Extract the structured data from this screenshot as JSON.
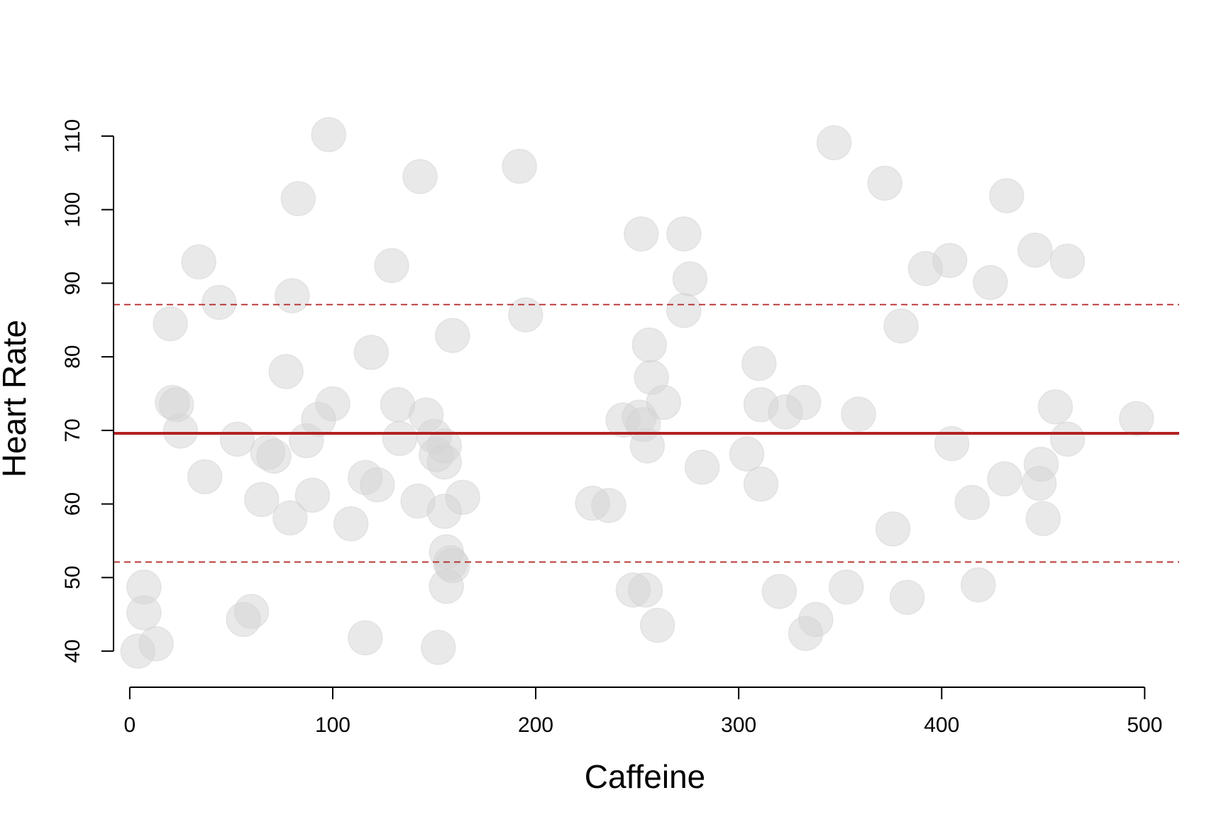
{
  "chart_data": {
    "type": "scatter",
    "title": "",
    "xlabel": "Caffeine",
    "ylabel": "Heart Rate",
    "xlim": [
      -8,
      517
    ],
    "ylim": [
      37.5,
      112.5
    ],
    "xticks": [
      0,
      100,
      200,
      300,
      400,
      500
    ],
    "yticks": [
      40,
      50,
      60,
      70,
      80,
      90,
      100,
      110
    ],
    "grid": false,
    "legend": "none",
    "colors": {
      "point_fill": "#d3d3d3",
      "mean_line": "#b22222",
      "band_line": "#b22222"
    },
    "reference_lines": [
      {
        "name": "mean",
        "y": 69.6,
        "style": "solid"
      },
      {
        "name": "upper",
        "y": 87.1,
        "style": "dashed"
      },
      {
        "name": "lower",
        "y": 52.1,
        "style": "dashed"
      }
    ],
    "points": [
      [
        4,
        40.0
      ],
      [
        7,
        48.7
      ],
      [
        7,
        45.2
      ],
      [
        13,
        41.0
      ],
      [
        20,
        84.5
      ],
      [
        21,
        73.8
      ],
      [
        23,
        73.5
      ],
      [
        25,
        69.9
      ],
      [
        34,
        92.9
      ],
      [
        37,
        63.7
      ],
      [
        44,
        87.4
      ],
      [
        53,
        68.8
      ],
      [
        56,
        44.3
      ],
      [
        60,
        45.4
      ],
      [
        65,
        60.6
      ],
      [
        68,
        67.0
      ],
      [
        71,
        66.5
      ],
      [
        77,
        78.0
      ],
      [
        79,
        58.1
      ],
      [
        80,
        88.3
      ],
      [
        83,
        101.5
      ],
      [
        87,
        68.6
      ],
      [
        90,
        61.2
      ],
      [
        93,
        71.5
      ],
      [
        98,
        110.2
      ],
      [
        100,
        73.6
      ],
      [
        109,
        57.3
      ],
      [
        116,
        63.6
      ],
      [
        116,
        41.8
      ],
      [
        119,
        80.6
      ],
      [
        122,
        62.6
      ],
      [
        129,
        92.4
      ],
      [
        132,
        73.5
      ],
      [
        133,
        68.9
      ],
      [
        142,
        60.4
      ],
      [
        143,
        104.5
      ],
      [
        146,
        72.1
      ],
      [
        150,
        69.2
      ],
      [
        151,
        66.7
      ],
      [
        152,
        40.5
      ],
      [
        155,
        67.9
      ],
      [
        155,
        65.7
      ],
      [
        155,
        59.0
      ],
      [
        156,
        53.5
      ],
      [
        156,
        48.8
      ],
      [
        158,
        52.0
      ],
      [
        159,
        51.6
      ],
      [
        159,
        82.9
      ],
      [
        164,
        60.9
      ],
      [
        192,
        105.9
      ],
      [
        195,
        85.7
      ],
      [
        228,
        60.1
      ],
      [
        236,
        59.8
      ],
      [
        243,
        71.4
      ],
      [
        248,
        48.3
      ],
      [
        251,
        71.8
      ],
      [
        252,
        96.7
      ],
      [
        253,
        70.8
      ],
      [
        254,
        48.3
      ],
      [
        255,
        67.9
      ],
      [
        256,
        81.6
      ],
      [
        257,
        77.2
      ],
      [
        260,
        43.5
      ],
      [
        263,
        73.8
      ],
      [
        273,
        96.7
      ],
      [
        273,
        86.3
      ],
      [
        276,
        90.6
      ],
      [
        282,
        65.0
      ],
      [
        304,
        66.8
      ],
      [
        310,
        79.1
      ],
      [
        311,
        73.5
      ],
      [
        311,
        62.7
      ],
      [
        320,
        48.1
      ],
      [
        323,
        72.5
      ],
      [
        332,
        73.8
      ],
      [
        333,
        42.4
      ],
      [
        338,
        44.3
      ],
      [
        347,
        109.1
      ],
      [
        353,
        48.7
      ],
      [
        359,
        72.2
      ],
      [
        372,
        103.6
      ],
      [
        376,
        56.6
      ],
      [
        380,
        84.2
      ],
      [
        383,
        47.3
      ],
      [
        392,
        92.0
      ],
      [
        404,
        93.1
      ],
      [
        405,
        68.2
      ],
      [
        415,
        60.2
      ],
      [
        418,
        49.0
      ],
      [
        424,
        90.1
      ],
      [
        431,
        63.4
      ],
      [
        432,
        101.9
      ],
      [
        446,
        94.5
      ],
      [
        448,
        62.8
      ],
      [
        449,
        65.4
      ],
      [
        450,
        58.0
      ],
      [
        456,
        73.2
      ],
      [
        462,
        93.0
      ],
      [
        462,
        68.8
      ],
      [
        496,
        71.6
      ]
    ]
  }
}
